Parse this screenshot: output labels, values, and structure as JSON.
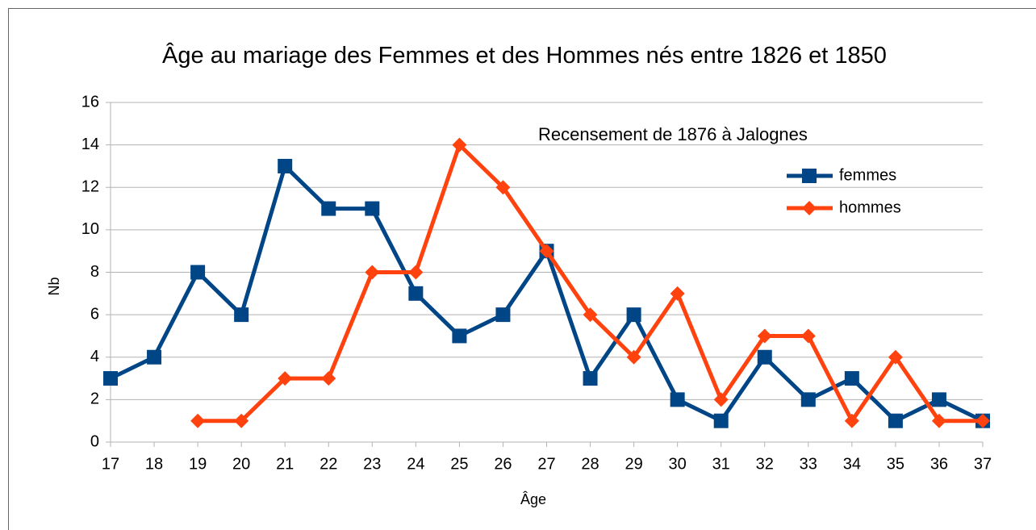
{
  "chart_data": {
    "type": "line",
    "title": "Âge au mariage des Femmes et des Hommes nés entre 1826 et 1850",
    "annotation": "Recensement de 1876 à Jalognes",
    "x_label": "Âge",
    "y_label": "Nb",
    "categories": [
      "17",
      "18",
      "19",
      "20",
      "21",
      "22",
      "23",
      "24",
      "25",
      "26",
      "27",
      "28",
      "29",
      "30",
      "31",
      "32",
      "33",
      "34",
      "35",
      "36",
      "37"
    ],
    "series": [
      {
        "name": "femmes",
        "color": "#004586",
        "marker": "square",
        "values": [
          3,
          4,
          8,
          6,
          13,
          11,
          11,
          7,
          5,
          6,
          9,
          3,
          6,
          2,
          1,
          4,
          2,
          3,
          1,
          2,
          1
        ]
      },
      {
        "name": "hommes",
        "color": "#ff420e",
        "marker": "diamond",
        "values": [
          null,
          null,
          1,
          1,
          3,
          3,
          8,
          8,
          14,
          12,
          9,
          6,
          4,
          7,
          2,
          5,
          5,
          1,
          4,
          1,
          1
        ]
      }
    ],
    "ylim": [
      0,
      16
    ],
    "yticks": [
      0,
      2,
      4,
      6,
      8,
      10,
      12,
      14,
      16
    ],
    "grid": true,
    "legend": "right"
  }
}
